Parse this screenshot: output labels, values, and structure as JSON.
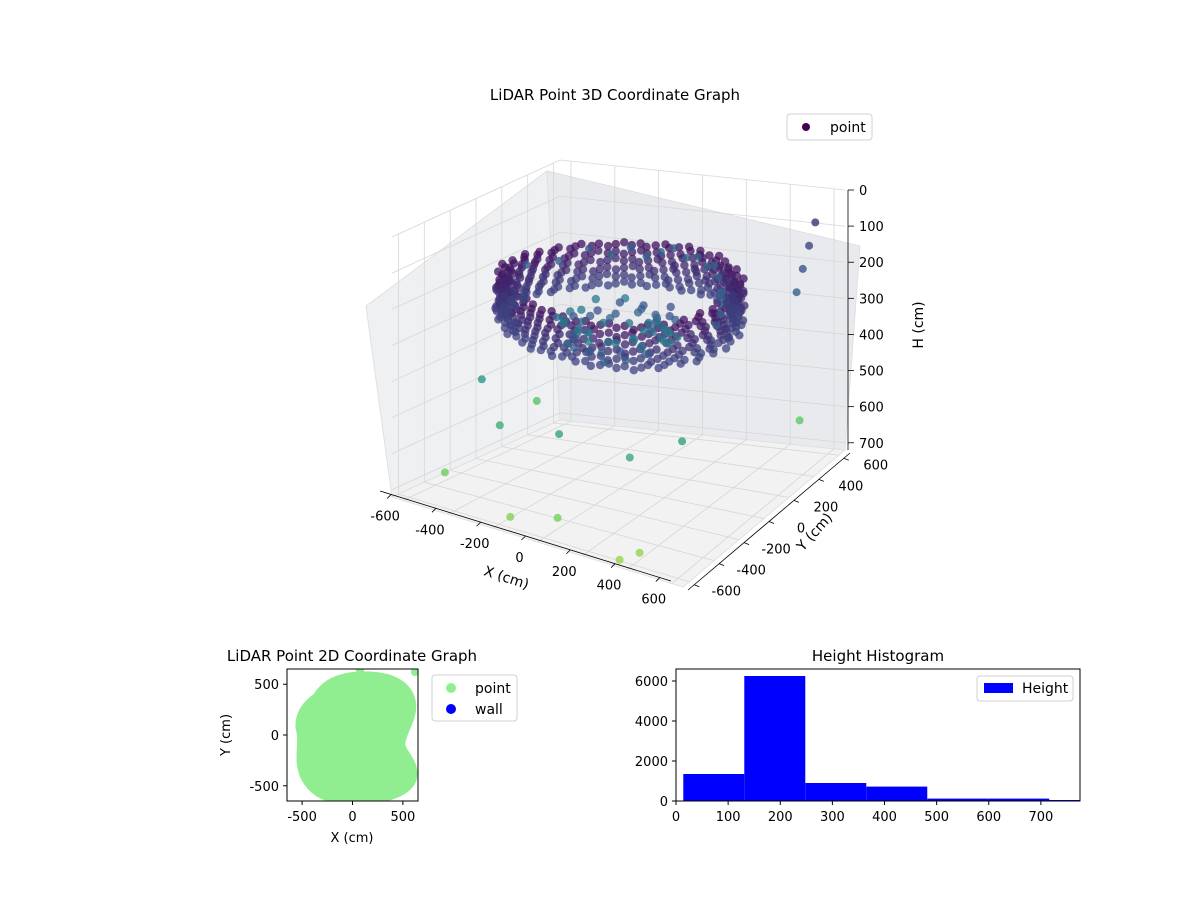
{
  "chart_data": [
    {
      "type": "scatter",
      "projection": "3d",
      "title": "LiDAR Point 3D Coordinate Graph",
      "xlabel": "X (cm)",
      "ylabel": "Y (cm)",
      "zlabel": "H (cm)",
      "xticks": [
        -600,
        -400,
        -200,
        0,
        200,
        400,
        600
      ],
      "yticks": [
        -600,
        -400,
        -200,
        0,
        200,
        400,
        600
      ],
      "zticks": [
        0,
        100,
        200,
        300,
        400,
        500,
        600,
        700
      ],
      "xlim": [
        -650,
        650
      ],
      "ylim": [
        -650,
        650
      ],
      "zlim": [
        0,
        720
      ],
      "zaxis_inverted": true,
      "grid": true,
      "legend": {
        "placement": "top-right",
        "entries": [
          "point"
        ]
      },
      "colormap": "viridis",
      "series": [
        {
          "name": "point",
          "color": "#440154",
          "description_values": "ring-shaped LiDAR point cloud; main shell at H 150-250, outliers down to H 700",
          "x": [
            -480,
            -420,
            -360,
            -300,
            -240,
            -180,
            -120,
            -60,
            0,
            60,
            120,
            180,
            240,
            300,
            360,
            420,
            480,
            -450,
            -300,
            0,
            300,
            450,
            200,
            -200,
            100,
            600,
            600,
            600,
            600,
            -500,
            -550,
            400,
            500,
            -150,
            50,
            350
          ],
          "y": [
            100,
            250,
            380,
            450,
            500,
            520,
            530,
            530,
            520,
            510,
            480,
            430,
            360,
            280,
            170,
            60,
            -80,
            -300,
            -420,
            -480,
            -450,
            -300,
            -100,
            -150,
            50,
            500,
            450,
            400,
            350,
            -500,
            300,
            -550,
            550,
            -600,
            -580,
            -620
          ],
          "h": [
            180,
            190,
            175,
            200,
            185,
            210,
            195,
            180,
            200,
            190,
            205,
            185,
            195,
            210,
            190,
            200,
            185,
            420,
            500,
            460,
            480,
            450,
            230,
            240,
            260,
            50,
            100,
            150,
            200,
            650,
            600,
            700,
            620,
            690,
            660,
            710
          ]
        }
      ]
    },
    {
      "type": "scatter",
      "title": "LiDAR Point 2D Coordinate Graph",
      "xlabel": "X (cm)",
      "ylabel": "Y (cm)",
      "xticks": [
        -500,
        0,
        500
      ],
      "yticks": [
        -500,
        0,
        500
      ],
      "xlim": [
        -650,
        650
      ],
      "ylim": [
        -650,
        650
      ],
      "grid": false,
      "legend": {
        "placement": "outside-right",
        "entries": [
          "point",
          "wall"
        ]
      },
      "series": [
        {
          "name": "point",
          "color": "#90ee90",
          "shape": "filled roughly circular region, radius ~600",
          "radius": 600
        },
        {
          "name": "wall",
          "color": "#0000ff",
          "x": [],
          "y": []
        }
      ]
    },
    {
      "type": "bar",
      "subtype": "histogram",
      "title": "Height Histogram",
      "xlabel": "",
      "ylabel": "",
      "xticks": [
        0,
        100,
        200,
        300,
        400,
        500,
        600,
        700
      ],
      "yticks": [
        0,
        2000,
        4000,
        6000
      ],
      "xlim": [
        0,
        775
      ],
      "ylim": [
        0,
        6600
      ],
      "bin_edges": [
        14,
        131,
        248,
        365,
        482,
        599,
        716,
        833
      ],
      "values": [
        1350,
        6250,
        900,
        720,
        120,
        120,
        50
      ],
      "grid": false,
      "legend": {
        "placement": "top-right",
        "entries": [
          "Height"
        ]
      },
      "series": [
        {
          "name": "Height",
          "color": "#0000ff"
        }
      ]
    }
  ]
}
